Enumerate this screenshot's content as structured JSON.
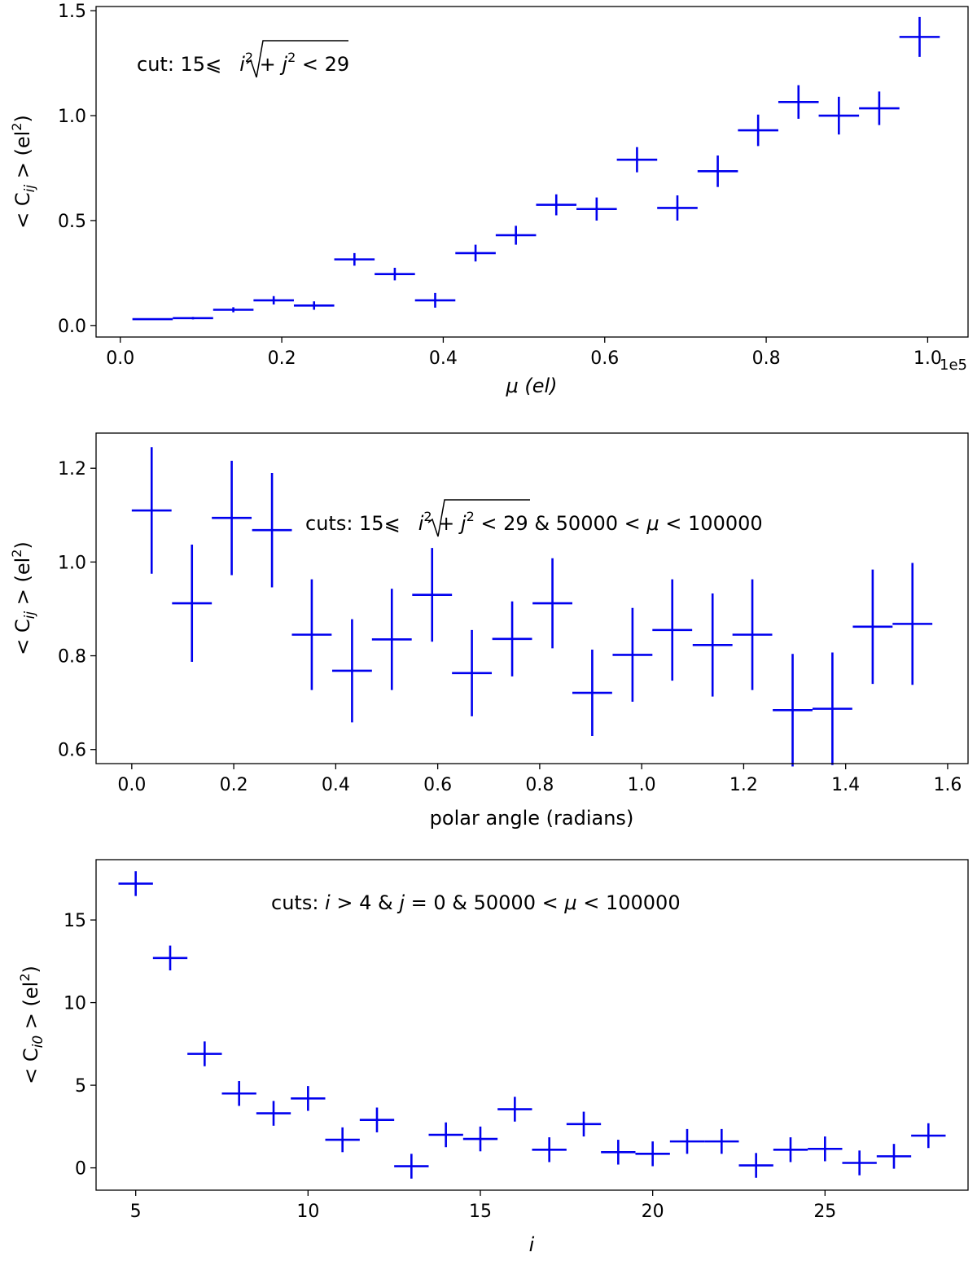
{
  "chart_data": [
    {
      "type": "errorbar",
      "xlabel": "μ (el)",
      "ylabel_parts": [
        "< C",
        "ij",
        " >  (el",
        "2",
        ")"
      ],
      "offset_text": "1e5",
      "annotation_parts": [
        "cut: 15⩽",
        "i",
        "2",
        " + ",
        "j",
        "2",
        " < 29"
      ],
      "xlim": [
        -0.03,
        1.05
      ],
      "ylim": [
        -0.055,
        1.52
      ],
      "xticks": [
        0.0,
        0.2,
        0.4,
        0.6,
        0.8,
        1.0
      ],
      "xtick_labels": [
        "0.0",
        "0.2",
        "0.4",
        "0.6",
        "0.8",
        "1.0"
      ],
      "yticks": [
        0.0,
        0.5,
        1.0,
        1.5
      ],
      "ytick_labels": [
        "0.0",
        "0.5",
        "1.0",
        "1.5"
      ],
      "points": [
        {
          "x": 0.04,
          "y": 0.03,
          "xerr": 0.025,
          "yerr": 0.003
        },
        {
          "x": 0.09,
          "y": 0.035,
          "xerr": 0.025,
          "yerr": 0.006
        },
        {
          "x": 0.14,
          "y": 0.075,
          "xerr": 0.025,
          "yerr": 0.012
        },
        {
          "x": 0.19,
          "y": 0.12,
          "xerr": 0.025,
          "yerr": 0.02
        },
        {
          "x": 0.24,
          "y": 0.095,
          "xerr": 0.025,
          "yerr": 0.02
        },
        {
          "x": 0.29,
          "y": 0.315,
          "xerr": 0.025,
          "yerr": 0.03
        },
        {
          "x": 0.34,
          "y": 0.245,
          "xerr": 0.025,
          "yerr": 0.03
        },
        {
          "x": 0.39,
          "y": 0.12,
          "xerr": 0.025,
          "yerr": 0.035
        },
        {
          "x": 0.44,
          "y": 0.345,
          "xerr": 0.025,
          "yerr": 0.04
        },
        {
          "x": 0.49,
          "y": 0.43,
          "xerr": 0.025,
          "yerr": 0.045
        },
        {
          "x": 0.54,
          "y": 0.575,
          "xerr": 0.025,
          "yerr": 0.05
        },
        {
          "x": 0.59,
          "y": 0.555,
          "xerr": 0.025,
          "yerr": 0.055
        },
        {
          "x": 0.64,
          "y": 0.79,
          "xerr": 0.025,
          "yerr": 0.06
        },
        {
          "x": 0.69,
          "y": 0.56,
          "xerr": 0.025,
          "yerr": 0.06
        },
        {
          "x": 0.74,
          "y": 0.735,
          "xerr": 0.025,
          "yerr": 0.075
        },
        {
          "x": 0.79,
          "y": 0.93,
          "xerr": 0.025,
          "yerr": 0.075
        },
        {
          "x": 0.84,
          "y": 1.065,
          "xerr": 0.025,
          "yerr": 0.08
        },
        {
          "x": 0.89,
          "y": 1.0,
          "xerr": 0.025,
          "yerr": 0.09
        },
        {
          "x": 0.94,
          "y": 1.035,
          "xerr": 0.025,
          "yerr": 0.08
        },
        {
          "x": 0.99,
          "y": 1.375,
          "xerr": 0.025,
          "yerr": 0.095
        }
      ]
    },
    {
      "type": "errorbar",
      "xlabel": "polar angle (radians)",
      "ylabel_parts": [
        "< C",
        "ij",
        " >  (el",
        "2",
        ")"
      ],
      "annotation_parts": [
        "cuts: 15⩽",
        "i",
        "2",
        " + ",
        "j",
        "2",
        " < 29 & 50000 < ",
        "μ",
        " < 100000"
      ],
      "xlim": [
        -0.07,
        1.64
      ],
      "ylim": [
        0.57,
        1.275
      ],
      "xticks": [
        0.0,
        0.2,
        0.4,
        0.6,
        0.8,
        1.0,
        1.2,
        1.4,
        1.6
      ],
      "xtick_labels": [
        "0.0",
        "0.2",
        "0.4",
        "0.6",
        "0.8",
        "1.0",
        "1.2",
        "1.4",
        "1.6"
      ],
      "yticks": [
        0.6,
        0.8,
        1.0,
        1.2
      ],
      "ytick_labels": [
        "0.6",
        "0.8",
        "1.0",
        "1.2"
      ],
      "points": [
        {
          "x": 0.039,
          "y": 1.11,
          "xerr": 0.039,
          "yerr": 0.135
        },
        {
          "x": 0.118,
          "y": 0.912,
          "xerr": 0.039,
          "yerr": 0.125
        },
        {
          "x": 0.196,
          "y": 1.094,
          "xerr": 0.039,
          "yerr": 0.122
        },
        {
          "x": 0.275,
          "y": 1.068,
          "xerr": 0.039,
          "yerr": 0.122
        },
        {
          "x": 0.353,
          "y": 0.845,
          "xerr": 0.039,
          "yerr": 0.118
        },
        {
          "x": 0.432,
          "y": 0.768,
          "xerr": 0.039,
          "yerr": 0.11
        },
        {
          "x": 0.51,
          "y": 0.835,
          "xerr": 0.039,
          "yerr": 0.108
        },
        {
          "x": 0.589,
          "y": 0.93,
          "xerr": 0.039,
          "yerr": 0.1
        },
        {
          "x": 0.667,
          "y": 0.763,
          "xerr": 0.039,
          "yerr": 0.092
        },
        {
          "x": 0.746,
          "y": 0.836,
          "xerr": 0.039,
          "yerr": 0.08
        },
        {
          "x": 0.825,
          "y": 0.912,
          "xerr": 0.039,
          "yerr": 0.096
        },
        {
          "x": 0.903,
          "y": 0.721,
          "xerr": 0.039,
          "yerr": 0.092
        },
        {
          "x": 0.982,
          "y": 0.802,
          "xerr": 0.039,
          "yerr": 0.1
        },
        {
          "x": 1.06,
          "y": 0.855,
          "xerr": 0.039,
          "yerr": 0.108
        },
        {
          "x": 1.139,
          "y": 0.823,
          "xerr": 0.039,
          "yerr": 0.11
        },
        {
          "x": 1.217,
          "y": 0.845,
          "xerr": 0.039,
          "yerr": 0.118
        },
        {
          "x": 1.296,
          "y": 0.684,
          "xerr": 0.039,
          "yerr": 0.12
        },
        {
          "x": 1.374,
          "y": 0.687,
          "xerr": 0.039,
          "yerr": 0.12
        },
        {
          "x": 1.453,
          "y": 0.862,
          "xerr": 0.039,
          "yerr": 0.122
        },
        {
          "x": 1.531,
          "y": 0.868,
          "xerr": 0.039,
          "yerr": 0.13
        }
      ]
    },
    {
      "type": "errorbar",
      "xlabel": "i",
      "ylabel_parts": [
        "< C",
        "i0",
        " >  (el",
        "2",
        ")"
      ],
      "annotation_parts": [
        "cuts: ",
        "i",
        " > 4 & ",
        "j",
        " = 0 & 50000 < ",
        "μ",
        " < 100000"
      ],
      "xlim": [
        3.85,
        29.15
      ],
      "ylim": [
        -1.35,
        18.65
      ],
      "xticks": [
        5,
        10,
        15,
        20,
        25
      ],
      "xtick_labels": [
        "5",
        "10",
        "15",
        "20",
        "25"
      ],
      "yticks": [
        0,
        5,
        10,
        15
      ],
      "ytick_labels": [
        "0",
        "5",
        "10",
        "15"
      ],
      "points": [
        {
          "x": 5,
          "y": 17.2,
          "xerr": 0.5,
          "yerr": 0.75
        },
        {
          "x": 6,
          "y": 12.7,
          "xerr": 0.5,
          "yerr": 0.75
        },
        {
          "x": 7,
          "y": 6.9,
          "xerr": 0.5,
          "yerr": 0.75
        },
        {
          "x": 8,
          "y": 4.5,
          "xerr": 0.5,
          "yerr": 0.75
        },
        {
          "x": 9,
          "y": 3.3,
          "xerr": 0.5,
          "yerr": 0.75
        },
        {
          "x": 10,
          "y": 4.2,
          "xerr": 0.5,
          "yerr": 0.75
        },
        {
          "x": 11,
          "y": 1.7,
          "xerr": 0.5,
          "yerr": 0.75
        },
        {
          "x": 12,
          "y": 2.9,
          "xerr": 0.5,
          "yerr": 0.75
        },
        {
          "x": 13,
          "y": 0.1,
          "xerr": 0.5,
          "yerr": 0.75
        },
        {
          "x": 14,
          "y": 2.0,
          "xerr": 0.5,
          "yerr": 0.75
        },
        {
          "x": 15,
          "y": 1.75,
          "xerr": 0.5,
          "yerr": 0.75
        },
        {
          "x": 16,
          "y": 3.55,
          "xerr": 0.5,
          "yerr": 0.75
        },
        {
          "x": 17,
          "y": 1.1,
          "xerr": 0.5,
          "yerr": 0.75
        },
        {
          "x": 18,
          "y": 2.65,
          "xerr": 0.5,
          "yerr": 0.75
        },
        {
          "x": 19,
          "y": 0.95,
          "xerr": 0.5,
          "yerr": 0.75
        },
        {
          "x": 20,
          "y": 0.85,
          "xerr": 0.5,
          "yerr": 0.75
        },
        {
          "x": 21,
          "y": 1.6,
          "xerr": 0.5,
          "yerr": 0.75
        },
        {
          "x": 22,
          "y": 1.6,
          "xerr": 0.5,
          "yerr": 0.75
        },
        {
          "x": 23,
          "y": 0.15,
          "xerr": 0.5,
          "yerr": 0.75
        },
        {
          "x": 24,
          "y": 1.1,
          "xerr": 0.5,
          "yerr": 0.75
        },
        {
          "x": 25,
          "y": 1.15,
          "xerr": 0.5,
          "yerr": 0.75
        },
        {
          "x": 26,
          "y": 0.3,
          "xerr": 0.5,
          "yerr": 0.75
        },
        {
          "x": 27,
          "y": 0.7,
          "xerr": 0.5,
          "yerr": 0.75
        },
        {
          "x": 28,
          "y": 1.95,
          "xerr": 0.5,
          "yerr": 0.75
        }
      ]
    }
  ]
}
